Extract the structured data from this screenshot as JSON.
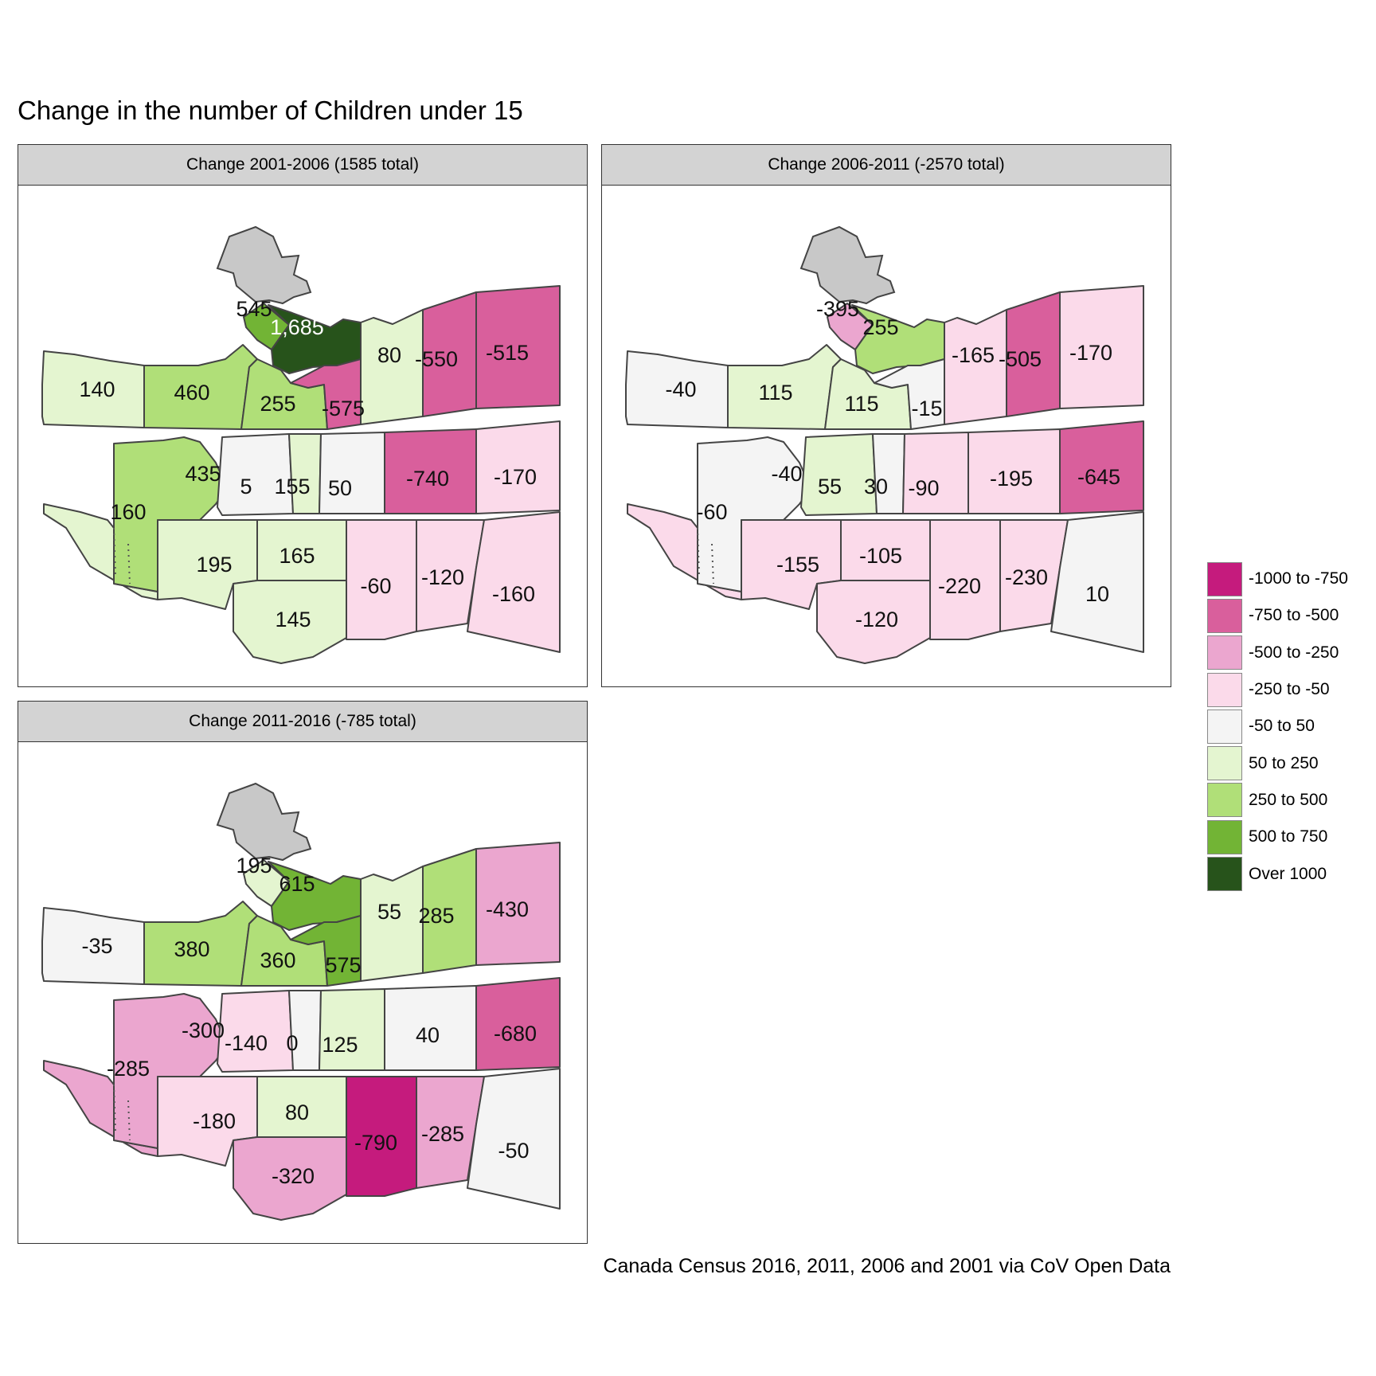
{
  "title": "Change in the number of Children under 15",
  "caption": "Canada Census 2016, 2011, 2006 and 2001 via CoV Open Data",
  "legend": [
    {
      "label": "-1000 to -750",
      "color": "#c51b7d"
    },
    {
      "label": "-750 to -500",
      "color": "#d95f9c"
    },
    {
      "label": "-500 to -250",
      "color": "#eba6cf"
    },
    {
      "label": "-250 to -50",
      "color": "#fbdaea"
    },
    {
      "label": "-50 to 50",
      "color": "#f4f4f4"
    },
    {
      "label": "50 to 250",
      "color": "#e4f5d0"
    },
    {
      "label": "250 to 500",
      "color": "#b0df78"
    },
    {
      "label": "500 to 750",
      "color": "#72b435"
    },
    {
      "label": "Over 1000",
      "color": "#27531b"
    }
  ],
  "no_data_color": "#c8c8c8",
  "panels": [
    {
      "strip": "Change 2001-2006 (1585 total)",
      "values": {
        "a": 545,
        "b": 1685,
        "c": 80,
        "d": -550,
        "e": -515,
        "f": 140,
        "g": 460,
        "h": 255,
        "i": -575,
        "j": 160,
        "k": 435,
        "l": 5,
        "m": 155,
        "n": 50,
        "o": -740,
        "p": -170,
        "q": 195,
        "r": 165,
        "s": 145,
        "t": -60,
        "u": -120,
        "v": -160
      },
      "labels": {
        "a": "545",
        "b": "1,685",
        "c": "80",
        "d": "-550",
        "e": "-515",
        "f": "140",
        "g": "460",
        "h": "255",
        "i": "-575",
        "j": "160",
        "k": "435",
        "l": "5",
        "m": "155",
        "n": "50",
        "o": "-740",
        "p": "-170",
        "q": "195",
        "r": "165",
        "s": "145",
        "t": "-60",
        "u": "-120",
        "v": "-160"
      }
    },
    {
      "strip": "Change 2006-2011 (-2570 total)",
      "values": {
        "a": -395,
        "b": 255,
        "c": -165,
        "d": -505,
        "e": -170,
        "f": -40,
        "g": 115,
        "h": 115,
        "i": -15,
        "j": -60,
        "k": -40,
        "l": 55,
        "m": 30,
        "n": -90,
        "o": -195,
        "p": -645,
        "q": -155,
        "r": -105,
        "s": -120,
        "t": -220,
        "u": -230,
        "v": 10
      },
      "labels": {
        "a": "-395",
        "b": "255",
        "c": "-165",
        "d": "-505",
        "e": "-170",
        "f": "-40",
        "g": "115",
        "h": "115",
        "i": "-15",
        "j": "-60",
        "k": "-40",
        "l": "55",
        "m": "30",
        "n": "-90",
        "o": "-195",
        "p": "-645",
        "q": "-155",
        "r": "-105",
        "s": "-120",
        "t": "-220",
        "u": "-230",
        "v": "10"
      }
    },
    {
      "strip": "Change 2011-2016 (-785 total)",
      "values": {
        "a": 195,
        "b": 615,
        "c": 55,
        "d": 285,
        "e": -430,
        "f": -35,
        "g": 380,
        "h": 360,
        "i": 575,
        "j": -285,
        "k": -300,
        "l": -140,
        "m": 0,
        "n": 125,
        "o": 40,
        "p": -680,
        "q": -180,
        "r": 80,
        "s": -320,
        "t": -790,
        "u": -285,
        "v": -50
      },
      "labels": {
        "a": "195",
        "b": "615",
        "c": "55",
        "d": "285",
        "e": "-430",
        "f": "-35",
        "g": "380",
        "h": "360",
        "i": "575",
        "j": "-285",
        "k": "-300",
        "l": "-140",
        "m": "0",
        "n": "125",
        "o": "40",
        "p": "-680",
        "q": "-180",
        "r": "80",
        "s": "-320",
        "t": "-790",
        "u": "-285",
        "v": "-50"
      }
    }
  ]
}
